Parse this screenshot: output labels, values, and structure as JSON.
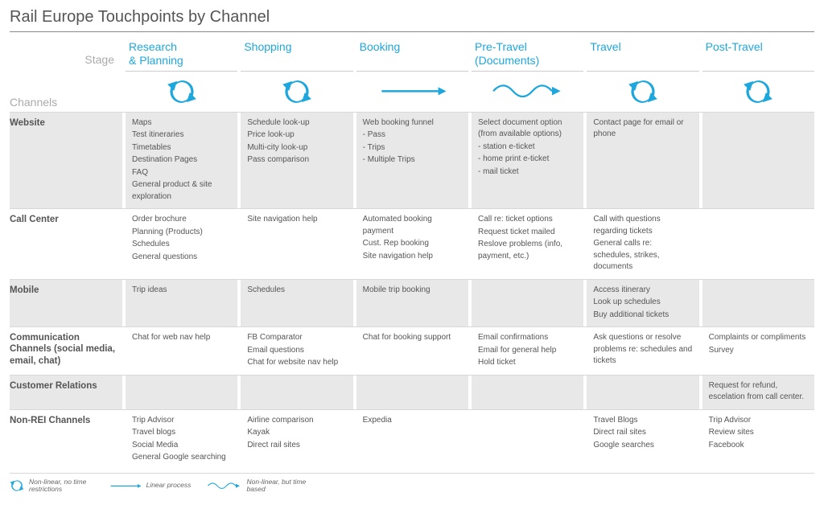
{
  "title": "Rail Europe Touchpoints by Channel",
  "colors": {
    "accent": "#1ea7dc",
    "text": "#555555",
    "muted": "#aaaaaa",
    "shade": "#e8e8e8",
    "rule": "#d8d8d8",
    "bg": "#ffffff"
  },
  "labels": {
    "stage": "Stage",
    "channels": "Channels"
  },
  "stages": [
    {
      "name": "Research\n& Planning",
      "icon": "cycle"
    },
    {
      "name": "Shopping",
      "icon": "cycle"
    },
    {
      "name": "Booking",
      "icon": "arrow"
    },
    {
      "name": "Pre-Travel\n(Documents)",
      "icon": "wave"
    },
    {
      "name": "Travel",
      "icon": "cycle"
    },
    {
      "name": "Post-Travel",
      "icon": "cycle"
    }
  ],
  "channels": [
    {
      "name": "Website",
      "shaded": true,
      "cells": [
        [
          "Maps",
          "Test itineraries",
          "Timetables",
          "Destination Pages",
          "FAQ",
          "General product & site exploration"
        ],
        [
          "Schedule look-up",
          "Price look-up",
          "Multi-city look-up",
          "Pass comparison"
        ],
        [
          "Web booking funnel",
          "- Pass",
          "- Trips",
          "- Multiple Trips"
        ],
        [
          "Select document option (from available options)",
          "- station e-ticket",
          "- home print e-ticket",
          "- mail ticket"
        ],
        [
          "Contact page for email or phone"
        ],
        []
      ]
    },
    {
      "name": "Call Center",
      "shaded": false,
      "cells": [
        [
          "Order brochure",
          "Planning (Products)",
          "Schedules",
          "General questions"
        ],
        [
          "Site navigation help"
        ],
        [
          "Automated booking payment",
          "Cust. Rep booking",
          "Site navigation help"
        ],
        [
          "Call re: ticket options",
          "Request ticket mailed",
          "Reslove problems (info, payment, etc.)"
        ],
        [
          "Call with questions regarding tickets",
          "General calls re: schedules, strikes, documents"
        ],
        []
      ]
    },
    {
      "name": "Mobile",
      "shaded": true,
      "cells": [
        [
          "Trip ideas"
        ],
        [
          "Schedules"
        ],
        [
          "Mobile trip booking"
        ],
        [],
        [
          "Access itinerary",
          "Look up schedules",
          "Buy additional tickets"
        ],
        []
      ]
    },
    {
      "name": "Communication Channels (social media, email, chat)",
      "shaded": false,
      "cells": [
        [
          "Chat for web nav help"
        ],
        [
          "FB Comparator",
          "Email questions",
          "Chat for website nav help"
        ],
        [
          "Chat for booking support"
        ],
        [
          "Email confirmations",
          "Email for general help",
          "Hold ticket"
        ],
        [
          "Ask questions or resolve problems re: schedules and tickets"
        ],
        [
          "Complaints or compliments",
          "Survey"
        ]
      ]
    },
    {
      "name": "Customer Relations",
      "shaded": true,
      "cells": [
        [],
        [],
        [],
        [],
        [],
        [
          "Request for refund, escelation from call center."
        ]
      ]
    },
    {
      "name": "Non-REI Channels",
      "shaded": false,
      "cells": [
        [
          "Trip Advisor",
          "Travel blogs",
          "Social Media",
          "General Google searching"
        ],
        [
          "Airline comparison",
          "Kayak",
          "Direct rail sites"
        ],
        [
          "Expedia"
        ],
        [],
        [
          "Travel Blogs",
          "Direct rail sites",
          "Google searches"
        ],
        [
          "Trip Advisor",
          "Review sites",
          "Facebook"
        ]
      ]
    }
  ],
  "legend": [
    {
      "icon": "cycle",
      "text": "Non-linear, no time restrictions"
    },
    {
      "icon": "arrow",
      "text": "Linear process"
    },
    {
      "icon": "wave",
      "text": "Non-linear, but time based"
    }
  ]
}
